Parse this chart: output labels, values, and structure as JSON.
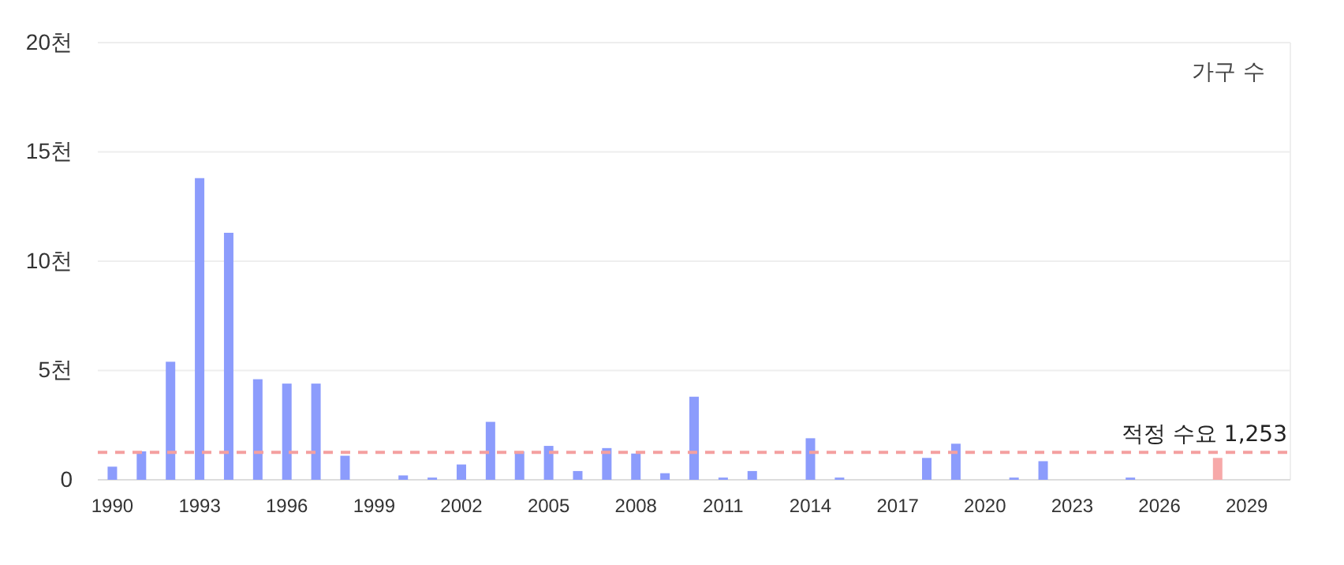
{
  "chart_data": {
    "type": "bar",
    "x": [
      1990,
      1991,
      1992,
      1993,
      1994,
      1995,
      1996,
      1997,
      1998,
      2000,
      2001,
      2002,
      2003,
      2004,
      2005,
      2006,
      2007,
      2008,
      2009,
      2010,
      2011,
      2012,
      2014,
      2015,
      2018,
      2019,
      2021,
      2022,
      2025,
      2028
    ],
    "values": [
      0.6,
      1.3,
      5.4,
      13.8,
      11.3,
      4.6,
      4.4,
      4.4,
      1.1,
      0.2,
      0.1,
      0.7,
      2.65,
      1.3,
      1.55,
      0.4,
      1.45,
      1.2,
      0.3,
      3.8,
      0.1,
      0.4,
      1.9,
      0.1,
      1.0,
      1.65,
      0.1,
      0.85,
      0.1,
      1.0
    ],
    "colors": [
      "#8c9cfc",
      "#8c9cfc",
      "#8c9cfc",
      "#8c9cfc",
      "#8c9cfc",
      "#8c9cfc",
      "#8c9cfc",
      "#8c9cfc",
      "#8c9cfc",
      "#8c9cfc",
      "#8c9cfc",
      "#8c9cfc",
      "#8c9cfc",
      "#8c9cfc",
      "#8c9cfc",
      "#8c9cfc",
      "#8c9cfc",
      "#8c9cfc",
      "#8c9cfc",
      "#8c9cfc",
      "#8c9cfc",
      "#8c9cfc",
      "#8c9cfc",
      "#8c9cfc",
      "#8c9cfc",
      "#8c9cfc",
      "#8c9cfc",
      "#8c9cfc",
      "#8c9cfc",
      "#f7a9a9"
    ],
    "xlim": [
      1989.5,
      2030.5
    ],
    "xticks": [
      1990,
      1993,
      1996,
      1999,
      2002,
      2005,
      2008,
      2011,
      2014,
      2017,
      2020,
      2023,
      2026,
      2029
    ],
    "ylim": [
      0,
      20
    ],
    "yticks": [
      {
        "value": 0,
        "label": "0"
      },
      {
        "value": 5,
        "label": "5천"
      },
      {
        "value": 10,
        "label": "10천"
      },
      {
        "value": 15,
        "label": "15천"
      },
      {
        "value": 20,
        "label": "20천"
      }
    ],
    "grid": "y",
    "ref_lines": [
      {
        "axis": "y",
        "value": 1.253,
        "label": "적정 수요 1,253",
        "color": "#f4a0a0",
        "line_style": "dashed"
      }
    ],
    "annotations": [
      "가구 수"
    ]
  }
}
